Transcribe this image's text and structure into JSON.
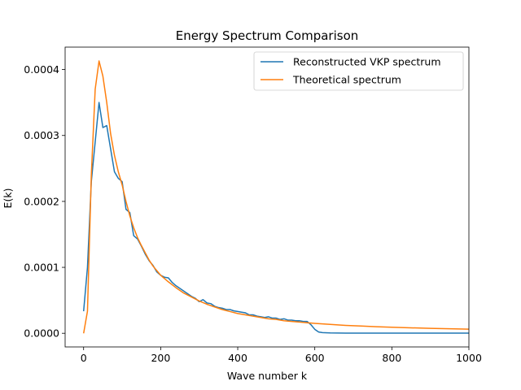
{
  "chart_data": {
    "type": "line",
    "title": "Energy Spectrum Comparison",
    "xlabel": "Wave number k",
    "ylabel": "E(k)",
    "xlim": [
      -48,
      1000
    ],
    "ylim": [
      -2.07e-05,
      0.000434
    ],
    "x_ticks": [
      0,
      200,
      400,
      600,
      800,
      1000
    ],
    "x_tick_labels": [
      "0",
      "200",
      "400",
      "600",
      "800",
      "1000"
    ],
    "y_ticks": [
      0.0,
      0.0001,
      0.0002,
      0.0003,
      0.0004
    ],
    "y_tick_labels": [
      "0.0000",
      "0.0001",
      "0.0002",
      "0.0003",
      "0.0004"
    ],
    "grid": false,
    "legend_position": "upper right",
    "series": [
      {
        "name": "Reconstructed VKP spectrum",
        "color": "#1f77b4",
        "x": [
          0,
          10,
          20,
          30,
          40,
          50,
          60,
          70,
          80,
          90,
          100,
          110,
          120,
          130,
          140,
          150,
          160,
          170,
          180,
          190,
          200,
          210,
          220,
          230,
          240,
          250,
          260,
          270,
          280,
          290,
          300,
          310,
          320,
          330,
          340,
          350,
          360,
          370,
          380,
          390,
          400,
          410,
          420,
          430,
          440,
          450,
          460,
          470,
          480,
          490,
          500,
          510,
          520,
          530,
          540,
          550,
          560,
          570,
          580,
          590,
          600,
          610,
          620,
          640,
          680,
          720,
          760,
          800,
          850,
          900,
          950,
          1000
        ],
        "y": [
          3.35e-05,
          0.0001,
          0.00023,
          0.00029,
          0.00035,
          0.000312,
          0.000315,
          0.00028,
          0.000245,
          0.000235,
          0.00023,
          0.000188,
          0.000183,
          0.000148,
          0.000143,
          0.000132,
          0.00012,
          0.00011,
          0.000103,
          9.3e-05,
          8.8e-05,
          8.5e-05,
          8.4e-05,
          7.7e-05,
          7.2e-05,
          6.8e-05,
          6.4e-05,
          6e-05,
          5.6e-05,
          5.3e-05,
          4.8e-05,
          5.1e-05,
          4.6e-05,
          4.5e-05,
          4.1e-05,
          3.9e-05,
          3.8e-05,
          3.6e-05,
          3.6e-05,
          3.4e-05,
          3.3e-05,
          3.2e-05,
          3.1e-05,
          2.8e-05,
          2.8e-05,
          2.6e-05,
          2.5e-05,
          2.4e-05,
          2.5e-05,
          2.3e-05,
          2.3e-05,
          2.1e-05,
          2.2e-05,
          2e-05,
          2e-05,
          1.9e-05,
          1.9e-05,
          1.8e-05,
          1.8e-05,
          1.3e-05,
          6e-06,
          2e-06,
          1e-06,
          5e-07,
          3e-07,
          2e-07,
          2e-07,
          2e-07,
          2e-07,
          2e-07,
          2e-07,
          2e-07
        ]
      },
      {
        "name": "Theoretical spectrum",
        "color": "#ff7f0e",
        "x": [
          0,
          10,
          20,
          30,
          40,
          50,
          60,
          70,
          80,
          90,
          100,
          110,
          120,
          130,
          140,
          150,
          160,
          170,
          180,
          190,
          200,
          220,
          240,
          260,
          280,
          300,
          320,
          340,
          360,
          380,
          400,
          420,
          440,
          460,
          480,
          500,
          520,
          540,
          560,
          580,
          600,
          640,
          680,
          720,
          760,
          800,
          850,
          900,
          950,
          1000
        ],
        "y": [
          0.0,
          3.35e-05,
          0.00024,
          0.00037,
          0.000413,
          0.00039,
          0.00035,
          0.000303,
          0.00027,
          0.000245,
          0.000225,
          0.0002,
          0.000178,
          0.00016,
          0.000145,
          0.000133,
          0.000122,
          0.000111,
          0.000102,
          9.5e-05,
          8.8e-05,
          7.8e-05,
          6.9e-05,
          6.1e-05,
          5.5e-05,
          4.9e-05,
          4.4e-05,
          4e-05,
          3.6e-05,
          3.3e-05,
          3e-05,
          2.8e-05,
          2.6e-05,
          2.4e-05,
          2.2e-05,
          2.1e-05,
          1.9e-05,
          1.8e-05,
          1.7e-05,
          1.6e-05,
          1.5e-05,
          1.35e-05,
          1.2e-05,
          1.1e-05,
          1e-05,
          9.2e-06,
          8.3e-06,
          7.5e-06,
          6.8e-06,
          6.2e-06
        ]
      }
    ]
  }
}
